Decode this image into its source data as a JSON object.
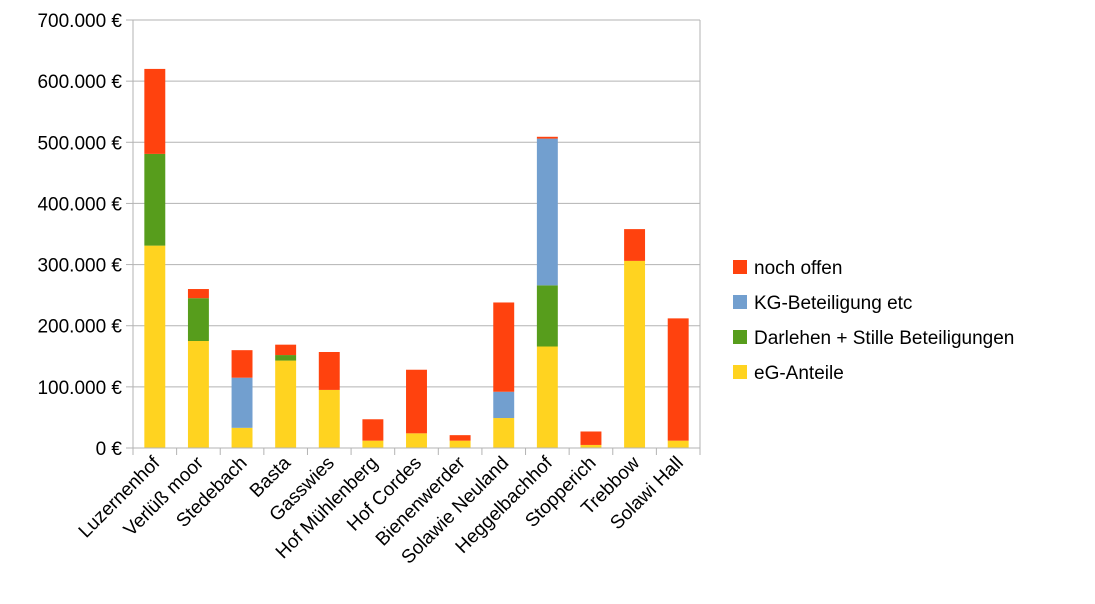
{
  "chart_data": {
    "type": "bar",
    "stacked": true,
    "title": "",
    "xlabel": "",
    "ylabel": "",
    "ylim": [
      0,
      700000
    ],
    "ytick_values": [
      0,
      100000,
      200000,
      300000,
      400000,
      500000,
      600000,
      700000
    ],
    "ytick_labels": [
      "0 €",
      "100.000 €",
      "200.000 €",
      "300.000 €",
      "400.000 €",
      "500.000 €",
      "600.000 €",
      "700.000 €"
    ],
    "grid": true,
    "legend_position": "right",
    "categories": [
      "Luzernenhof",
      "Verlüß moor",
      "Stedebach",
      "Basta",
      "Gasswies",
      "Hof Mühlenberg",
      "Hof Cordes",
      "Bienenwerder",
      "Solawie Neuland",
      "Heggelbachhof",
      "Stopperich",
      "Trebbow",
      "Solawi Hall"
    ],
    "series": [
      {
        "name": "eG-Anteile",
        "color": "#ffd320",
        "values": [
          331000,
          175000,
          33000,
          143000,
          95000,
          12000,
          24000,
          12000,
          49000,
          166000,
          5000,
          306000,
          12000
        ]
      },
      {
        "name": "Darlehen + Stille Beteiligungen",
        "color": "#579d1c",
        "values": [
          150000,
          70000,
          0,
          9000,
          0,
          0,
          0,
          0,
          0,
          100000,
          0,
          0,
          0
        ]
      },
      {
        "name": "KG-Beteiligung etc",
        "color": "#729fcf",
        "values": [
          0,
          0,
          82000,
          0,
          0,
          0,
          0,
          0,
          43000,
          240000,
          0,
          0,
          0
        ]
      },
      {
        "name": "noch offen",
        "color": "#ff420e",
        "values": [
          139000,
          15000,
          45000,
          17000,
          62000,
          35000,
          104000,
          9000,
          146000,
          3000,
          22000,
          52000,
          200000
        ]
      }
    ],
    "legend_order": [
      "noch offen",
      "KG-Beteiligung etc",
      "Darlehen + Stille Beteiligungen",
      "eG-Anteile"
    ]
  }
}
